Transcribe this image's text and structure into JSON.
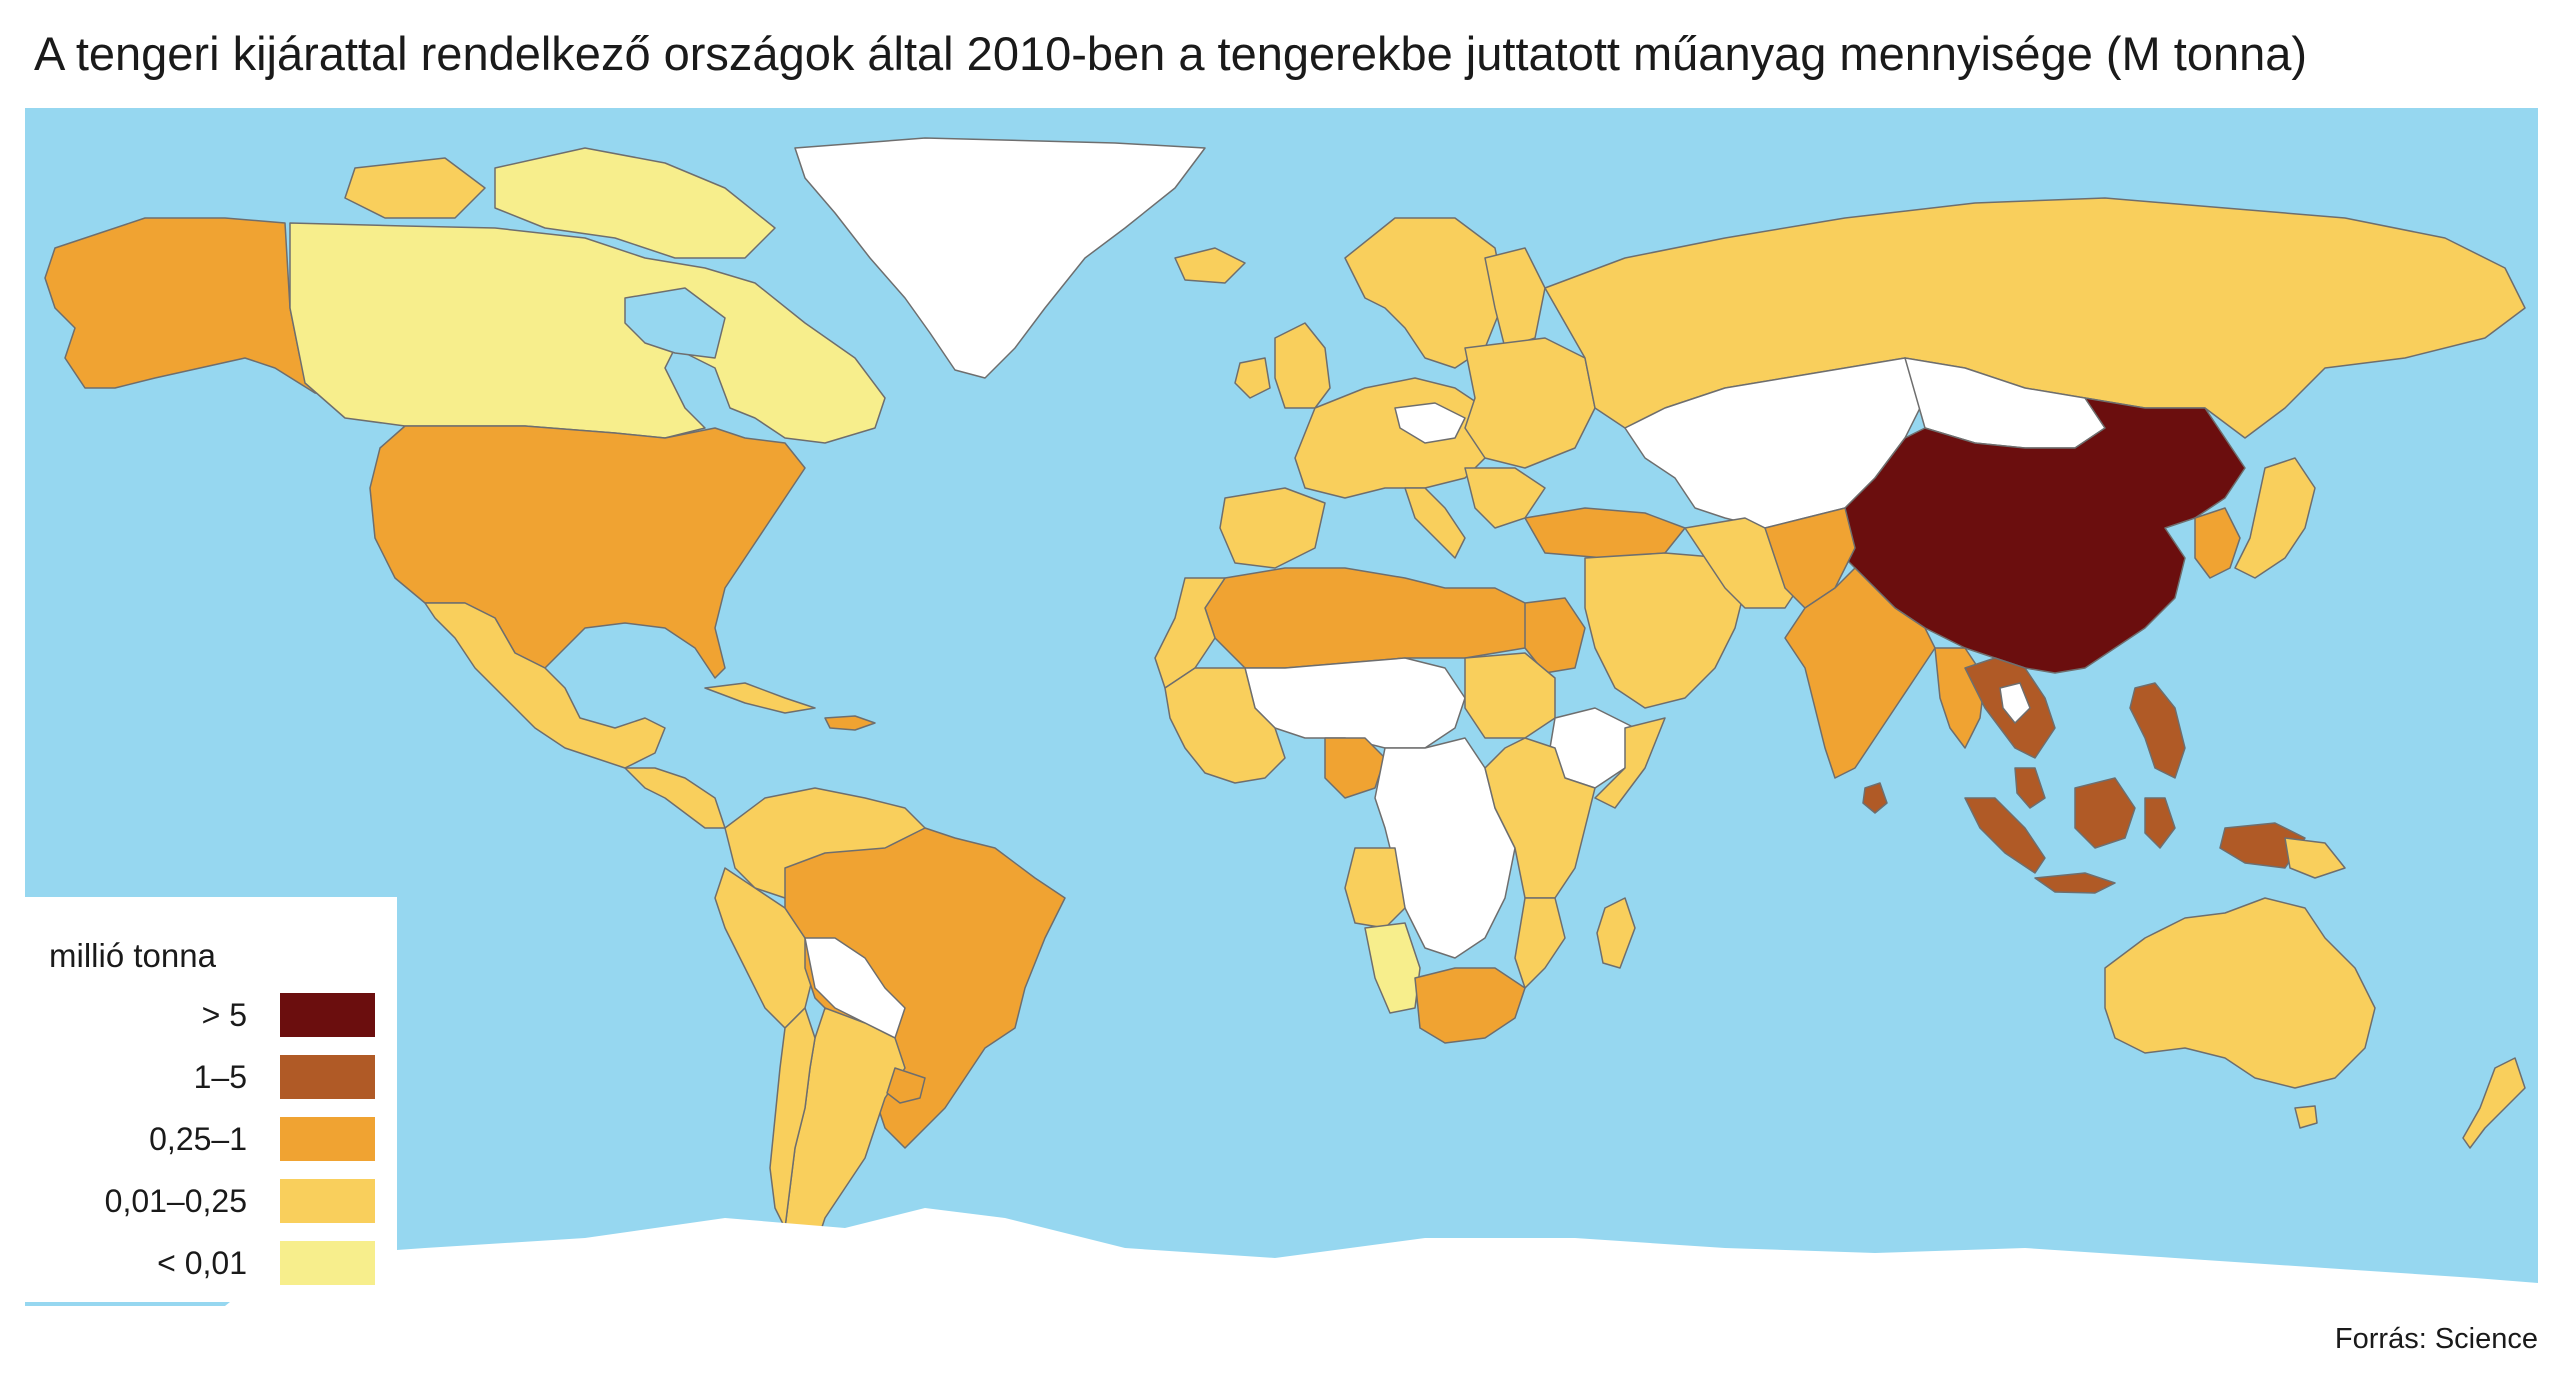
{
  "title": "A tengeri kijárattal rendelkező országok által 2010-ben a tengerekbe juttatott műanyag mennyisége (M tonna)",
  "source": "Forrás: Science",
  "legend": {
    "title": "millió tonna",
    "items": [
      {
        "label": "> 5",
        "color": "#6b0e0e"
      },
      {
        "label": "1–5",
        "color": "#b05a26"
      },
      {
        "label": "0,25–1",
        "color": "#f0a332"
      },
      {
        "label": "0,01–0,25",
        "color": "#f9cf5c"
      },
      {
        "label": "< 0,01",
        "color": "#f7ee8c"
      }
    ]
  },
  "colors": {
    "ocean": "#96d7f0",
    "no_data": "#ffffff",
    "border": "#6e6e6e"
  }
}
